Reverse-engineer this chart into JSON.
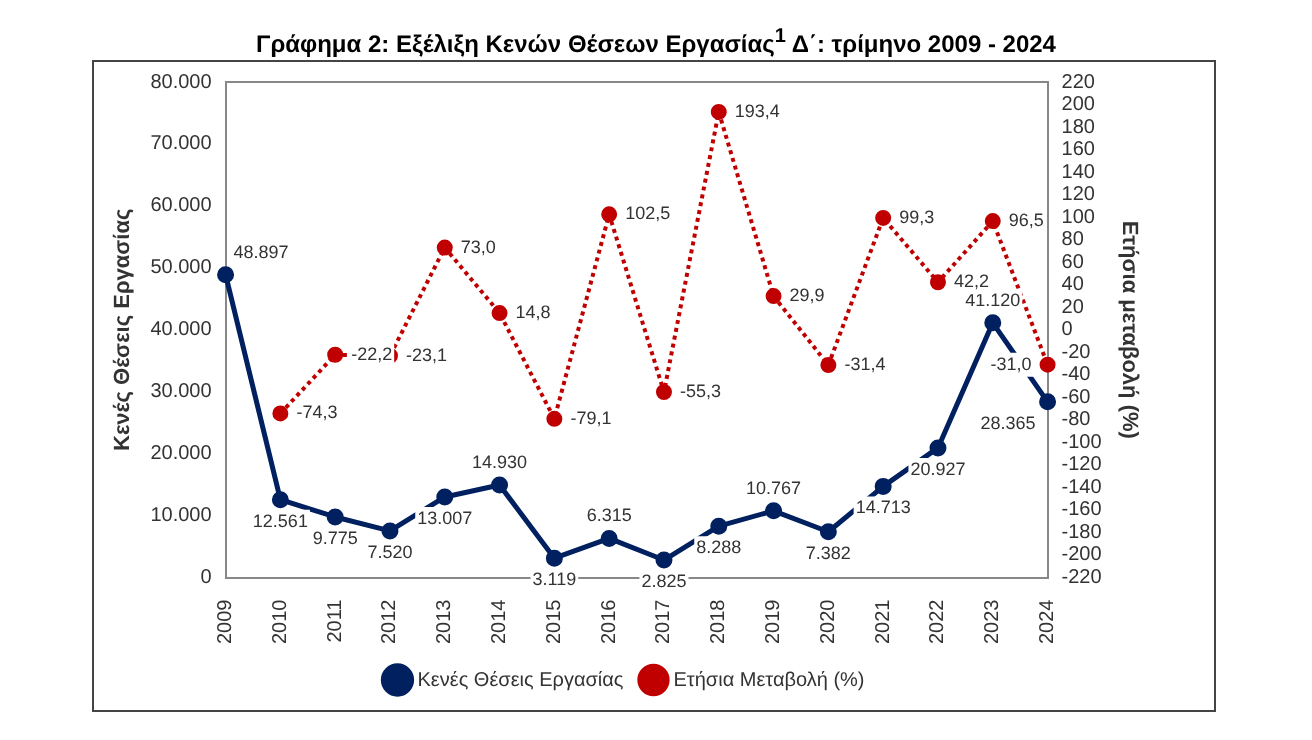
{
  "chart_data": {
    "type": "line",
    "title": "Γράφημα 2: Εξέλιξη Κενών Θέσεων Εργασίας$^{1}$ Δ΄: τρίμηνο 2009 - 2024",
    "ylabel": "Κενές Θέσεις Εργασίας",
    "y2label": "Ετήσια μεταβολή (%)",
    "categories": [
      "2009",
      "2010",
      "2011",
      "2012",
      "2013",
      "2014",
      "2015",
      "2016",
      "2017",
      "2018",
      "2019",
      "2020",
      "2021",
      "2022",
      "2023",
      "2024"
    ],
    "series": [
      {
        "name": "Κενές Θέσεις Εργασίας",
        "color": "#002060",
        "type": "line",
        "line_style": "solid",
        "marker": "circle",
        "values": [
          48897,
          12561,
          9775,
          7520,
          13007,
          14930,
          3119,
          6315,
          2825,
          8288,
          10767,
          7382,
          14713,
          20927,
          41120,
          28365
        ],
        "value_labels": [
          "48.897",
          "12.561",
          "9.775",
          "7.520",
          "13.007",
          "14.930",
          "3.119",
          "6.315",
          "2.825",
          "8.288",
          "10.767",
          "7.382",
          "14.713",
          "20.927",
          "41.120",
          "28.365"
        ]
      },
      {
        "name": "Ετήσια Μεταβολή (%)",
        "color": "#c00000",
        "type": "line",
        "axis": "y2",
        "line_style": "dotted",
        "marker": "circle",
        "values": [
          null,
          -74.3,
          -22.2,
          -23.1,
          73.0,
          14.8,
          -79.1,
          102.5,
          -55.3,
          193.4,
          29.9,
          -31.4,
          99.3,
          42.2,
          96.5,
          -31.0
        ],
        "value_labels": [
          null,
          "-74,3",
          "-22,2",
          "-23,1",
          "73,0",
          "14,8",
          "-79,1",
          "102,5",
          "-55,3",
          "193,4",
          "29,9",
          "-31,4",
          "99,3",
          "42,2",
          "96,5",
          "-31,0"
        ]
      }
    ],
    "ylim": [
      0,
      80000
    ],
    "yticks": [
      {
        "value": 0,
        "label": "0"
      },
      {
        "value": 10000,
        "label": "10.000"
      },
      {
        "value": 20000,
        "label": "20.000"
      },
      {
        "value": 30000,
        "label": "30.000"
      },
      {
        "value": 40000,
        "label": "40.000"
      },
      {
        "value": 50000,
        "label": "50.000"
      },
      {
        "value": 60000,
        "label": "60.000"
      },
      {
        "value": 70000,
        "label": "70.000"
      },
      {
        "value": 80000,
        "label": "80.000"
      }
    ],
    "y2lim": [
      -220,
      220
    ],
    "y2ticks": [
      -220,
      -200,
      -180,
      -160,
      -140,
      -120,
      -100,
      -80,
      -60,
      -40,
      -20,
      0,
      20,
      40,
      60,
      80,
      100,
      120,
      140,
      160,
      180,
      200,
      220
    ],
    "grid": false,
    "legend": "bottom"
  }
}
